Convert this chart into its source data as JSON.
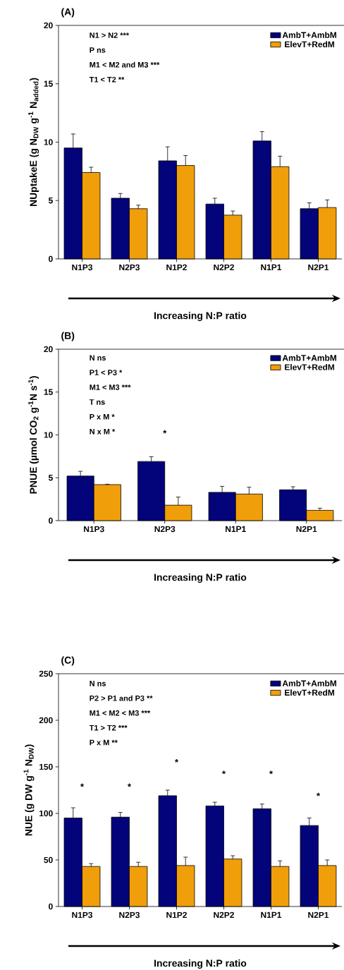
{
  "chart_data": [
    {
      "type": "bar",
      "title": "(A)",
      "ylabel": "NUptakeE (g N$_{DW}$ g$^{-1}$ N$_{added}$)",
      "xlabel": "Increasing N:P ratio",
      "categories": [
        "N1P3",
        "N2P3",
        "N1P2",
        "N2P2",
        "N1P1",
        "N2P1"
      ],
      "series": [
        {
          "name": "AmbT+AmbM",
          "color": "#03037a",
          "values": [
            9.5,
            5.2,
            8.4,
            4.7,
            10.1,
            4.3
          ],
          "errors": [
            1.2,
            0.4,
            1.2,
            0.5,
            0.8,
            0.5
          ]
        },
        {
          "name": "ElevT+RedM",
          "color": "#f09e0a",
          "values": [
            7.4,
            4.3,
            8.0,
            3.75,
            7.9,
            4.4
          ],
          "errors": [
            0.45,
            0.3,
            0.85,
            0.35,
            0.9,
            0.65
          ]
        }
      ],
      "ylim": [
        0,
        20
      ],
      "yticks": [
        0,
        5,
        10,
        15,
        20
      ],
      "legend": "top right",
      "annotations": [
        "N1 > N2 ***",
        "P ns",
        "M1 < M2 and M3 ***",
        "T1 < T2 **"
      ]
    },
    {
      "type": "bar",
      "title": "(B)",
      "ylabel": "PNUE (µmol CO$_{2}$ g$^{-1}$N s$^{-1}$)",
      "xlabel": "Increasing N:P ratio",
      "categories": [
        "N1P3",
        "N2P3",
        "N1P1",
        "N2P1"
      ],
      "series": [
        {
          "name": "AmbT+AmbM",
          "color": "#03037a",
          "values": [
            5.2,
            6.9,
            3.3,
            3.6
          ],
          "errors": [
            0.55,
            0.55,
            0.7,
            0.35
          ]
        },
        {
          "name": "ElevT+RedM",
          "color": "#f09e0a",
          "values": [
            4.2,
            1.8,
            3.1,
            1.2
          ],
          "errors": [
            0.05,
            0.95,
            0.8,
            0.25
          ]
        }
      ],
      "ylim": [
        0,
        20
      ],
      "yticks": [
        0,
        5,
        10,
        15,
        20
      ],
      "legend": "top right",
      "annotations": [
        "N ns",
        "P1 < P3 *",
        "M1 < M3 ***",
        "T ns",
        "P x M *",
        "N x M *",
        "*"
      ]
    },
    {
      "type": "bar",
      "title": "(C)",
      "ylabel": "NUE (g DW g$^{-1}$ N$_{DW}$)",
      "xlabel": "Increasing N:P ratio",
      "categories": [
        "N1P3",
        "N2P3",
        "N1P2",
        "N2P2",
        "N1P1",
        "N2P1"
      ],
      "series": [
        {
          "name": "AmbT+AmbM",
          "color": "#03037a",
          "values": [
            95,
            96,
            119,
            108,
            105,
            87
          ],
          "errors": [
            11,
            5,
            6,
            4,
            5,
            8
          ]
        },
        {
          "name": "ElevT+RedM",
          "color": "#f09e0a",
          "values": [
            43,
            43,
            44,
            51,
            43,
            44
          ],
          "errors": [
            3,
            4.5,
            9,
            3.5,
            6,
            6
          ]
        }
      ],
      "ylim": [
        0,
        250
      ],
      "yticks": [
        0,
        50,
        100,
        150,
        200,
        250
      ],
      "legend": "top right",
      "annotations": [
        "N ns",
        "P2 > P1 and P3 **",
        "M1 < M2 < M3 ***",
        "T1 > T2 ***",
        "P x M **",
        "*",
        "*",
        "*",
        "*",
        "*",
        "*"
      ]
    }
  ]
}
